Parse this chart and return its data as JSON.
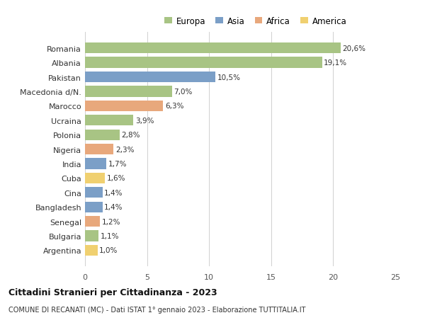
{
  "categories": [
    "Romania",
    "Albania",
    "Pakistan",
    "Macedonia d/N.",
    "Marocco",
    "Ucraina",
    "Polonia",
    "Nigeria",
    "India",
    "Cuba",
    "Cina",
    "Bangladesh",
    "Senegal",
    "Bulgaria",
    "Argentina"
  ],
  "values": [
    20.6,
    19.1,
    10.5,
    7.0,
    6.3,
    3.9,
    2.8,
    2.3,
    1.7,
    1.6,
    1.4,
    1.4,
    1.2,
    1.1,
    1.0
  ],
  "continents": [
    "Europa",
    "Europa",
    "Asia",
    "Europa",
    "Africa",
    "Europa",
    "Europa",
    "Africa",
    "Asia",
    "America",
    "Asia",
    "Asia",
    "Africa",
    "Europa",
    "America"
  ],
  "bar_colors": {
    "Europa": "#a8c484",
    "Asia": "#7b9fc7",
    "Africa": "#e8a87c",
    "America": "#f0d070"
  },
  "xlim": [
    0,
    25
  ],
  "xticks": [
    0,
    5,
    10,
    15,
    20,
    25
  ],
  "title": "Cittadini Stranieri per Cittadinanza - 2023",
  "subtitle": "COMUNE DI RECANATI (MC) - Dati ISTAT 1° gennaio 2023 - Elaborazione TUTTITALIA.IT",
  "background_color": "#ffffff",
  "grid_color": "#d0d0d0",
  "legend_order": [
    "Europa",
    "Asia",
    "Africa",
    "America"
  ]
}
